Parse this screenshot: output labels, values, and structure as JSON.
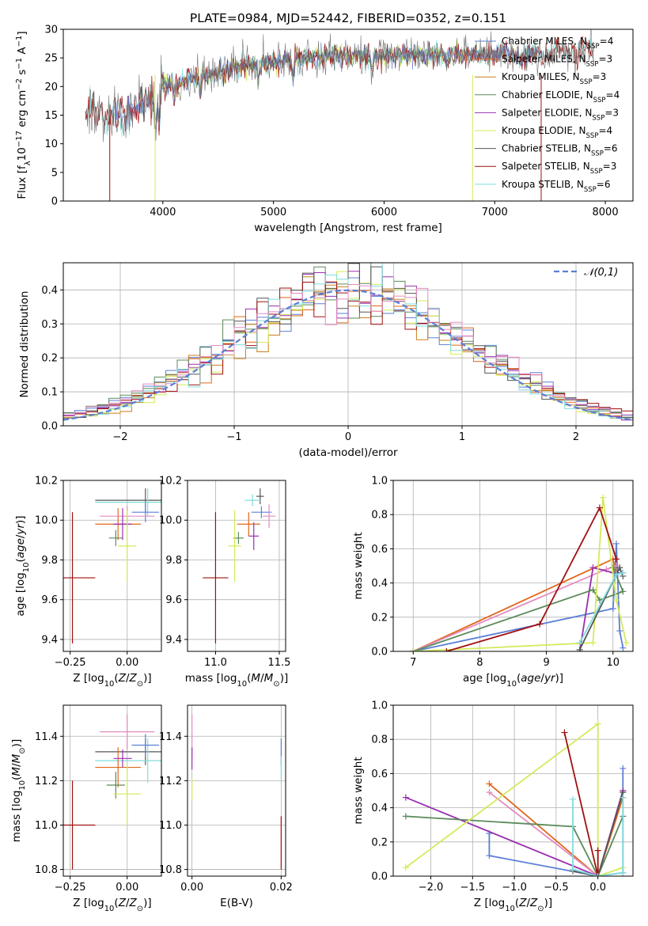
{
  "colors": {
    "chabrier_miles": "#5b7fd6",
    "salpeter_miles": "#e0671a",
    "kroupa_miles": "#c8801a",
    "chabrier_elodie": "#5a8a5a",
    "salpeter_elodie": "#9a2fb0",
    "kroupa_elodie": "#d4ea5a",
    "chabrier_stelib": "#555555",
    "salpeter_stelib": "#a01010",
    "kroupa_stelib": "#80dcdc",
    "pink": "#e38bc0",
    "gaussian": "#5b7fd6",
    "grid": "#b0b0b0"
  },
  "legend_labels": [
    {
      "text": "Chabrier MILES, N",
      "color": "#5b7fd6",
      "n": "4"
    },
    {
      "text": "Salpeter MILES, N",
      "color": "#e0671a",
      "n": "3"
    },
    {
      "text": "Kroupa MILES, N",
      "color": "#c8801a",
      "n": "3"
    },
    {
      "text": "Chabrier ELODIE, N",
      "color": "#5a8a5a",
      "n": "4"
    },
    {
      "text": "Salpeter ELODIE, N",
      "color": "#9a2fb0",
      "n": "3"
    },
    {
      "text": "Kroupa ELODIE, N",
      "color": "#d4ea5a",
      "n": "4"
    },
    {
      "text": "Chabrier STELIB, N",
      "color": "#555555",
      "n": "6"
    },
    {
      "text": "Salpeter STELIB, N",
      "color": "#a01010",
      "n": "3"
    },
    {
      "text": "Kroupa STELIB, N",
      "color": "#80dcdc",
      "n": "6"
    }
  ],
  "chart_data": [
    {
      "type": "line",
      "title": "PLATE=0984, MJD=52442, FIBERID=0352, z=0.151",
      "xlabel": "wavelength [Angstrom, rest frame]",
      "ylabel": "Flux [f_λ10^-17 erg cm^-2 s^-1 A^-1]",
      "xlim": [
        3100,
        8250
      ],
      "ylim": [
        0,
        30
      ],
      "xticks": [
        "4000",
        "5000",
        "6000",
        "7000",
        "8000"
      ],
      "yticks": [
        "0",
        "5",
        "10",
        "15",
        "20",
        "25",
        "30"
      ],
      "grid": false,
      "legend": "top-right",
      "continuum": [
        [
          3300,
          16.0
        ],
        [
          3500,
          15.0
        ],
        [
          3700,
          15.5
        ],
        [
          3900,
          18.0
        ],
        [
          4000,
          19.5
        ],
        [
          4100,
          20.5
        ],
        [
          4300,
          21.5
        ],
        [
          4500,
          22.5
        ],
        [
          4700,
          23.5
        ],
        [
          4900,
          24.0
        ],
        [
          5100,
          24.5
        ],
        [
          5300,
          25.0
        ],
        [
          5500,
          25.5
        ],
        [
          5700,
          25.5
        ],
        [
          5900,
          25.0
        ],
        [
          6100,
          25.5
        ],
        [
          6300,
          25.5
        ],
        [
          6600,
          25.5
        ],
        [
          7000,
          25.5
        ],
        [
          7300,
          25.5
        ],
        [
          7600,
          26.0
        ],
        [
          7900,
          26.0
        ]
      ],
      "dropouts": [
        [
          3520,
          0
        ],
        [
          3930,
          0
        ],
        [
          6800,
          0
        ],
        [
          7420,
          0
        ]
      ]
    },
    {
      "type": "line",
      "xlabel": "(data-model)/error",
      "ylabel": "Normed distribution",
      "xlim": [
        -2.5,
        2.5
      ],
      "ylim": [
        0,
        0.48
      ],
      "xticks": [
        "−2",
        "−1",
        "0",
        "1",
        "2"
      ],
      "yticks": [
        "0.0",
        "0.1",
        "0.2",
        "0.3",
        "0.4"
      ],
      "grid": true,
      "legend": "top-right",
      "legend_label": "𝒩(0,1)",
      "gaussian": {
        "mu": 0,
        "sigma": 1
      },
      "bin_width": 0.1
    },
    {
      "type": "scatter",
      "xlabel": "Z [log10(Z/Z⊙)]",
      "ylabel": "age  [log10(age/yr)]",
      "xlim": [
        -0.28,
        0.15
      ],
      "ylim": [
        9.34,
        10.2
      ],
      "xticks": [
        "−0.25",
        "0.00"
      ],
      "yticks": [
        "9.4",
        "9.6",
        "9.8",
        "10.0",
        "10.2"
      ],
      "grid": true,
      "points": [
        {
          "x": 0.08,
          "y": 10.1,
          "xerr": 0.22,
          "yerr": 0.06,
          "c": "#555555"
        },
        {
          "x": 0.09,
          "y": 10.09,
          "xerr": 0.23,
          "yerr": 0.07,
          "c": "#80dcdc"
        },
        {
          "x": 0.08,
          "y": 10.04,
          "xerr": 0.06,
          "yerr": 0.05,
          "c": "#5b7fd6"
        },
        {
          "x": -0.04,
          "y": 9.98,
          "xerr": 0.1,
          "yerr": 0.08,
          "c": "#e0671a"
        },
        {
          "x": 0.0,
          "y": 10.02,
          "xerr": 0.12,
          "yerr": 0.05,
          "c": "#e38bc0"
        },
        {
          "x": -0.02,
          "y": 9.98,
          "xerr": 0.04,
          "yerr": 0.08,
          "c": "#9a2fb0"
        },
        {
          "x": -0.05,
          "y": 9.91,
          "xerr": 0.03,
          "yerr": 0.04,
          "c": "#5a8a5a"
        },
        {
          "x": 0.0,
          "y": 9.87,
          "xerr": 0.04,
          "yerr": 0.18,
          "c": "#d4ea5a"
        },
        {
          "x": -0.24,
          "y": 9.71,
          "xerr": 0.1,
          "yerr": 0.33,
          "c": "#a01010"
        }
      ]
    },
    {
      "type": "scatter",
      "xlabel": "mass [log10(M/M⊙)]",
      "ylabel": "",
      "xlim": [
        10.78,
        11.55
      ],
      "ylim": [
        9.34,
        10.2
      ],
      "xticks": [
        "11.0",
        "11.5"
      ],
      "yticks": [
        "9.4",
        "9.6",
        "9.8",
        "10.0",
        "10.2"
      ],
      "grid": true,
      "points": [
        {
          "x": 11.35,
          "y": 10.12,
          "xerr": 0.03,
          "yerr": 0.04,
          "c": "#555555"
        },
        {
          "x": 11.29,
          "y": 10.1,
          "xerr": 0.06,
          "yerr": 0.03,
          "c": "#80dcdc"
        },
        {
          "x": 11.36,
          "y": 10.04,
          "xerr": 0.08,
          "yerr": 0.03,
          "c": "#5b7fd6"
        },
        {
          "x": 11.26,
          "y": 9.98,
          "xerr": 0.09,
          "yerr": 0.06,
          "c": "#e0671a"
        },
        {
          "x": 11.42,
          "y": 10.02,
          "xerr": 0.05,
          "yerr": 0.06,
          "c": "#e38bc0"
        },
        {
          "x": 11.3,
          "y": 9.92,
          "xerr": 0.04,
          "yerr": 0.07,
          "c": "#9a2fb0"
        },
        {
          "x": 11.18,
          "y": 9.91,
          "xerr": 0.04,
          "yerr": 0.03,
          "c": "#5a8a5a"
        },
        {
          "x": 11.15,
          "y": 9.87,
          "xerr": 0.05,
          "yerr": 0.18,
          "c": "#d4ea5a"
        },
        {
          "x": 11.0,
          "y": 9.71,
          "xerr": 0.1,
          "yerr": 0.33,
          "c": "#a01010"
        }
      ]
    },
    {
      "type": "line",
      "xlabel": "age  [log10(age/yr)]",
      "ylabel": "mass weight",
      "xlim": [
        6.7,
        10.3
      ],
      "ylim": [
        0,
        1.0
      ],
      "xticks": [
        "7",
        "8",
        "9",
        "10"
      ],
      "yticks": [
        "0.0",
        "0.2",
        "0.4",
        "0.6",
        "0.8",
        "1.0"
      ],
      "grid": true,
      "series": [
        {
          "c": "#5b7fd6",
          "pts": [
            [
              7.0,
              0.0
            ],
            [
              10.0,
              0.25
            ],
            [
              10.05,
              0.63
            ],
            [
              10.1,
              0.12
            ],
            [
              10.15,
              0.02
            ]
          ]
        },
        {
          "c": "#e0671a",
          "pts": [
            [
              7.0,
              0.0
            ],
            [
              10.0,
              0.54
            ],
            [
              10.05,
              0.46
            ]
          ]
        },
        {
          "c": "#e38bc0",
          "pts": [
            [
              7.0,
              0.0
            ],
            [
              9.9,
              0.48
            ],
            [
              10.05,
              0.5
            ]
          ]
        },
        {
          "c": "#9a2fb0",
          "pts": [
            [
              9.5,
              0.0
            ],
            [
              9.7,
              0.49
            ],
            [
              10.0,
              0.46
            ],
            [
              10.15,
              0.46
            ]
          ]
        },
        {
          "c": "#5a8a5a",
          "pts": [
            [
              7.0,
              0.0
            ],
            [
              9.7,
              0.36
            ],
            [
              9.8,
              0.3
            ],
            [
              10.15,
              0.35
            ],
            [
              10.0,
              0.49
            ]
          ]
        },
        {
          "c": "#d4ea5a",
          "pts": [
            [
              7.0,
              0.0
            ],
            [
              9.7,
              0.05
            ],
            [
              9.85,
              0.9
            ],
            [
              10.05,
              0.3
            ],
            [
              10.2,
              0.05
            ]
          ]
        },
        {
          "c": "#555555",
          "pts": [
            [
              9.5,
              0.01
            ],
            [
              10.1,
              0.49
            ],
            [
              10.15,
              0.44
            ]
          ]
        },
        {
          "c": "#a01010",
          "pts": [
            [
              7.5,
              0.0
            ],
            [
              8.9,
              0.16
            ],
            [
              9.8,
              0.84
            ],
            [
              10.05,
              0.54
            ]
          ]
        },
        {
          "c": "#80dcdc",
          "pts": [
            [
              9.5,
              0.05
            ],
            [
              10.05,
              0.45
            ],
            [
              10.15,
              0.46
            ]
          ]
        }
      ]
    },
    {
      "type": "scatter",
      "xlabel": "Z [log10(Z/Z⊙)]",
      "ylabel": "mass [log10(M/M⊙)]",
      "xlim": [
        -0.28,
        0.15
      ],
      "ylim": [
        10.77,
        11.54
      ],
      "xticks": [
        "−0.25",
        "0.00"
      ],
      "yticks": [
        "10.8",
        "11.0",
        "11.2",
        "11.4"
      ],
      "grid": true,
      "points": [
        {
          "x": 0.08,
          "y": 11.33,
          "xerr": 0.22,
          "yerr": 0.06,
          "c": "#555555"
        },
        {
          "x": 0.09,
          "y": 11.29,
          "xerr": 0.23,
          "yerr": 0.1,
          "c": "#80dcdc"
        },
        {
          "x": 0.08,
          "y": 11.36,
          "xerr": 0.06,
          "yerr": 0.05,
          "c": "#5b7fd6"
        },
        {
          "x": -0.04,
          "y": 11.26,
          "xerr": 0.1,
          "yerr": 0.09,
          "c": "#e0671a"
        },
        {
          "x": 0.0,
          "y": 11.42,
          "xerr": 0.12,
          "yerr": 0.08,
          "c": "#e38bc0"
        },
        {
          "x": -0.02,
          "y": 11.3,
          "xerr": 0.04,
          "yerr": 0.04,
          "c": "#9a2fb0"
        },
        {
          "x": -0.05,
          "y": 11.18,
          "xerr": 0.04,
          "yerr": 0.06,
          "c": "#5a8a5a"
        },
        {
          "x": 0.0,
          "y": 11.14,
          "xerr": 0.06,
          "yerr": 0.14,
          "c": "#d4ea5a"
        },
        {
          "x": -0.24,
          "y": 11.0,
          "xerr": 0.1,
          "yerr": 0.2,
          "c": "#a01010"
        }
      ]
    },
    {
      "type": "scatter",
      "xlabel": "E(B-V)",
      "ylabel": "",
      "xlim": [
        -0.001,
        0.021
      ],
      "ylim": [
        10.77,
        11.54
      ],
      "xticks": [
        "0.00",
        "0.02"
      ],
      "yticks": [
        "10.8",
        "11.0",
        "11.2",
        "11.4"
      ],
      "grid": true,
      "points": [
        {
          "x": 0.0,
          "y": 11.4,
          "xerr": 0,
          "yerr": 0.1,
          "c": "#e38bc0"
        },
        {
          "x": 0.0,
          "y": 11.3,
          "xerr": 0,
          "yerr": 0.05,
          "c": "#9a2fb0"
        },
        {
          "x": 0.0,
          "y": 11.16,
          "xerr": 0,
          "yerr": 0.05,
          "c": "#d4ea5a"
        },
        {
          "x": 0.02,
          "y": 11.33,
          "xerr": 0,
          "yerr": 0.06,
          "c": "#5b7fd6"
        },
        {
          "x": 0.02,
          "y": 11.25,
          "xerr": 0,
          "yerr": 0.06,
          "c": "#80dcdc"
        },
        {
          "x": 0.02,
          "y": 10.92,
          "xerr": 0,
          "yerr": 0.12,
          "c": "#a01010"
        }
      ]
    },
    {
      "type": "line",
      "xlabel": "Z [log10(Z/Z⊙)]",
      "ylabel": "mass weight",
      "xlim": [
        -2.45,
        0.42
      ],
      "ylim": [
        0,
        1.0
      ],
      "xticks": [
        "−2.0",
        "−1.5",
        "−1.0",
        "−0.5",
        "0.0"
      ],
      "yticks": [
        "0.0",
        "0.2",
        "0.4",
        "0.6",
        "0.8",
        "1.0"
      ],
      "grid": true,
      "series": [
        {
          "c": "#5b7fd6",
          "pts": [
            [
              -1.3,
              0.25
            ],
            [
              -1.3,
              0.12
            ],
            [
              0.0,
              0.0
            ],
            [
              0.3,
              0.02
            ],
            [
              0.3,
              0.63
            ]
          ]
        },
        {
          "c": "#e0671a",
          "pts": [
            [
              -1.3,
              0.54
            ],
            [
              0.0,
              0.0
            ],
            [
              0.3,
              0.46
            ]
          ]
        },
        {
          "c": "#e38bc0",
          "pts": [
            [
              -1.3,
              0.49
            ],
            [
              0.0,
              0.0
            ],
            [
              0.3,
              0.5
            ]
          ]
        },
        {
          "c": "#9a2fb0",
          "pts": [
            [
              -2.3,
              0.46
            ],
            [
              0.0,
              0.0
            ],
            [
              0.3,
              0.5
            ]
          ]
        },
        {
          "c": "#5a8a5a",
          "pts": [
            [
              -2.3,
              0.35
            ],
            [
              -0.3,
              0.29
            ],
            [
              0.0,
              0.0
            ],
            [
              0.3,
              0.35
            ]
          ]
        },
        {
          "c": "#d4ea5a",
          "pts": [
            [
              -2.3,
              0.05
            ],
            [
              0.0,
              0.89
            ],
            [
              0.0,
              0.0
            ],
            [
              0.3,
              0.05
            ]
          ]
        },
        {
          "c": "#555555",
          "pts": [
            [
              -0.3,
              0.03
            ],
            [
              0.0,
              0.0
            ],
            [
              0.3,
              0.49
            ]
          ]
        },
        {
          "c": "#a01010",
          "pts": [
            [
              -0.4,
              0.84
            ],
            [
              0.0,
              0.0
            ],
            [
              0.0,
              0.15
            ]
          ]
        },
        {
          "c": "#80dcdc",
          "pts": [
            [
              -0.3,
              0.45
            ],
            [
              -0.3,
              0.04
            ],
            [
              0.0,
              0.0
            ],
            [
              0.3,
              0.02
            ],
            [
              0.3,
              0.46
            ]
          ]
        }
      ]
    }
  ]
}
